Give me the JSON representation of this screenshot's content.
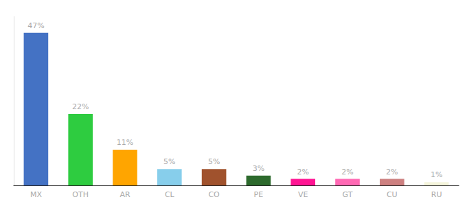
{
  "chart_data": {
    "type": "bar",
    "categories": [
      "MX",
      "OTH",
      "AR",
      "CL",
      "CO",
      "PE",
      "VE",
      "GT",
      "CU",
      "RU"
    ],
    "values": [
      47,
      22,
      11,
      5,
      5,
      3,
      2,
      2,
      2,
      1
    ],
    "value_labels": [
      "47%",
      "22%",
      "11%",
      "5%",
      "5%",
      "3%",
      "2%",
      "2%",
      "2%",
      "1%"
    ],
    "colors": [
      "#4472C4",
      "#2ECC40",
      "#FFA500",
      "#87CEEB",
      "#A0522D",
      "#2D6A2D",
      "#FF1493",
      "#FF69B4",
      "#CD8080",
      "#F5F5DC"
    ],
    "data_labels": true,
    "ylim": [
      0,
      52
    ],
    "grid": false,
    "tick_labels": "x"
  }
}
